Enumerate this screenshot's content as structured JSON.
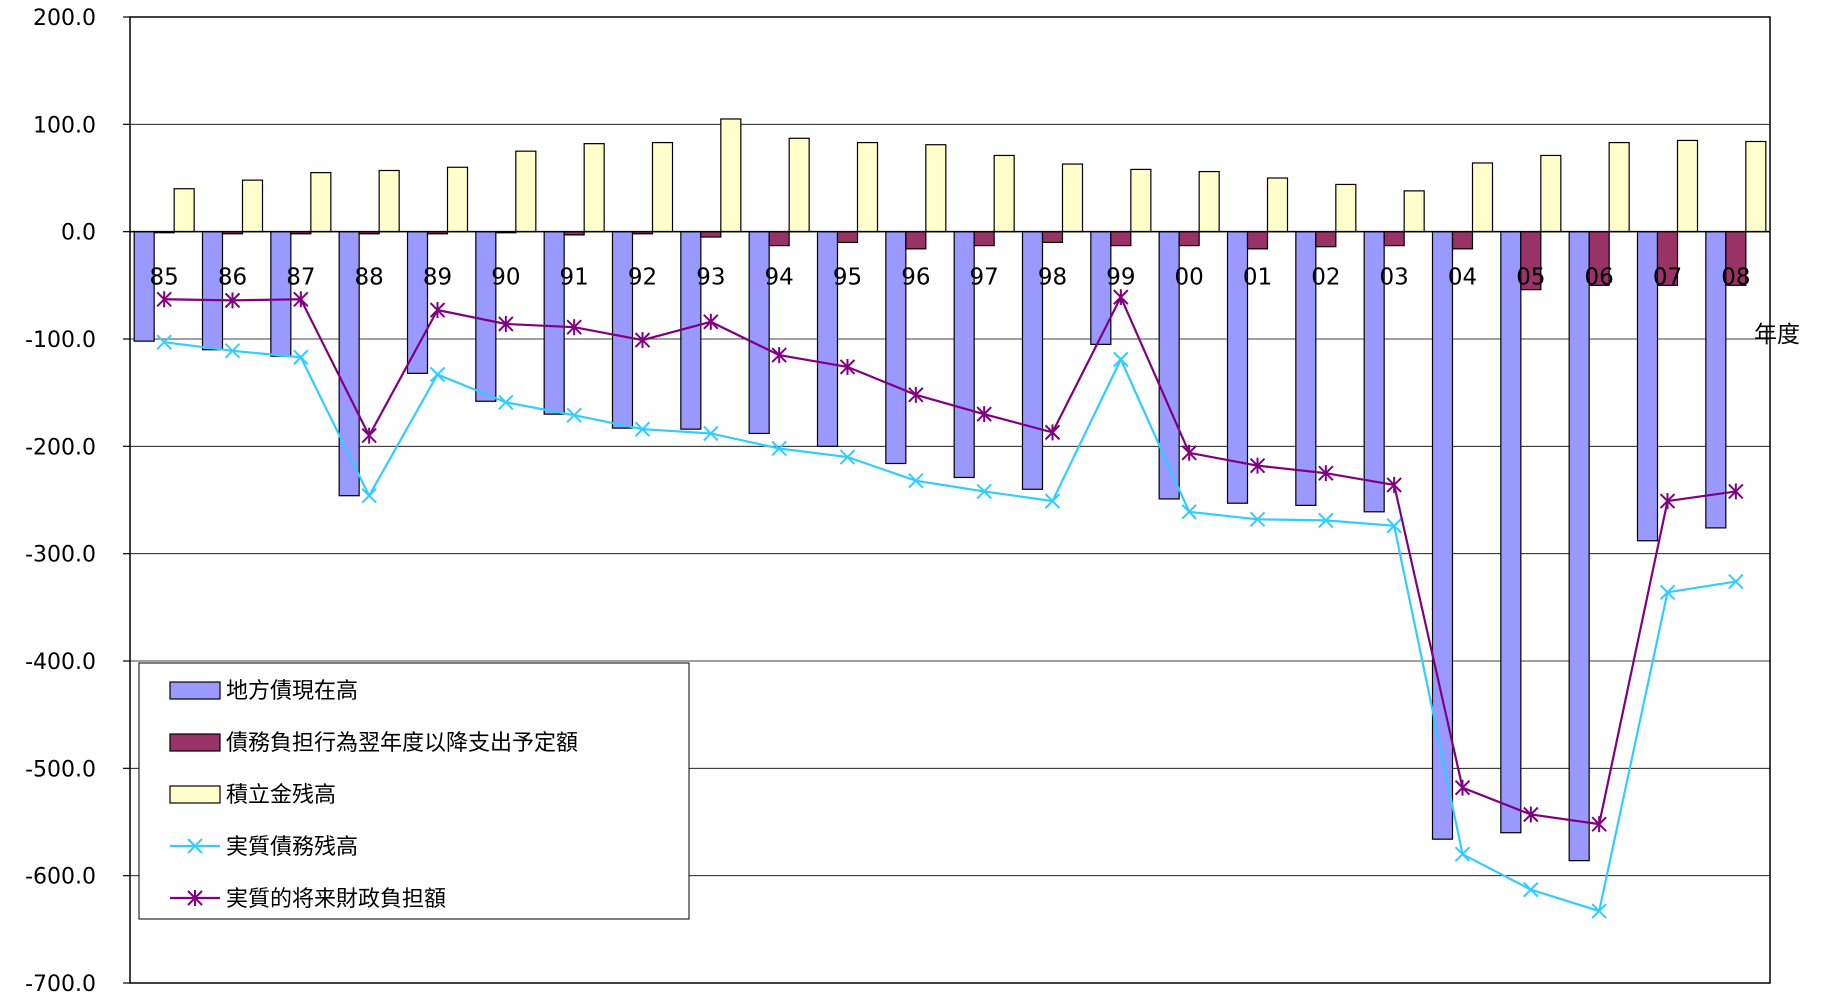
{
  "chart_data": {
    "type": "bar",
    "title": "",
    "xlabel": "年度",
    "ylabel": "",
    "ylim": [
      -700,
      200
    ],
    "ytick_step": 100,
    "yticks": [
      "200.0",
      "100.0",
      "0.0",
      "-100.0",
      "-200.0",
      "-300.0",
      "-400.0",
      "-500.0",
      "-600.0",
      "-700.0"
    ],
    "grid": "horizontal",
    "legend_position": "lower-left",
    "categories": [
      "85",
      "86",
      "87",
      "88",
      "89",
      "90",
      "91",
      "92",
      "93",
      "94",
      "95",
      "96",
      "97",
      "98",
      "99",
      "00",
      "01",
      "02",
      "03",
      "04",
      "05",
      "06",
      "07",
      "08"
    ],
    "series": [
      {
        "name": "地方債現在高",
        "kind": "bar",
        "color": "#9999ff",
        "values": [
          -102,
          -110,
          -116,
          -246,
          -132,
          -158,
          -170,
          -183,
          -184,
          -188,
          -200,
          -216,
          -229,
          -240,
          -105,
          -249,
          -253,
          -255,
          -261,
          -566,
          -560,
          -586,
          -288,
          -276
        ]
      },
      {
        "name": "債務負担行為翌年度以降支出予定額",
        "kind": "bar",
        "color": "#993366",
        "values": [
          -1,
          -2,
          -2,
          -2,
          -2,
          -1,
          -3,
          -2,
          -5,
          -13,
          -10,
          -16,
          -13,
          -10,
          -13,
          -13,
          -16,
          -14,
          -13,
          -16,
          -54,
          -50,
          -50,
          -50
        ]
      },
      {
        "name": "積立金残高",
        "kind": "bar",
        "color": "#ffffcc",
        "values": [
          40,
          48,
          55,
          57,
          60,
          75,
          82,
          83,
          105,
          87,
          83,
          81,
          71,
          63,
          58,
          56,
          50,
          44,
          38,
          64,
          71,
          83,
          85,
          84
        ]
      },
      {
        "name": "実質債務残高",
        "kind": "line",
        "marker": "x",
        "color": "#33ccff",
        "values": [
          -103,
          -111,
          -117,
          -246,
          -133,
          -159,
          -171,
          -184,
          -188,
          -202,
          -210,
          -232,
          -242,
          -251,
          -119,
          -261,
          -268,
          -269,
          -274,
          -580,
          -613,
          -633,
          -336,
          -326
        ]
      },
      {
        "name": "実質的将来財政負担額",
        "kind": "line",
        "marker": "asterisk",
        "color": "#800080",
        "values": [
          -63,
          -64,
          -63,
          -190,
          -73,
          -86,
          -89,
          -101,
          -84,
          -115,
          -126,
          -152,
          -170,
          -187,
          -61,
          -206,
          -218,
          -225,
          -236,
          -518,
          -543,
          -552,
          -251,
          -242
        ]
      }
    ]
  }
}
